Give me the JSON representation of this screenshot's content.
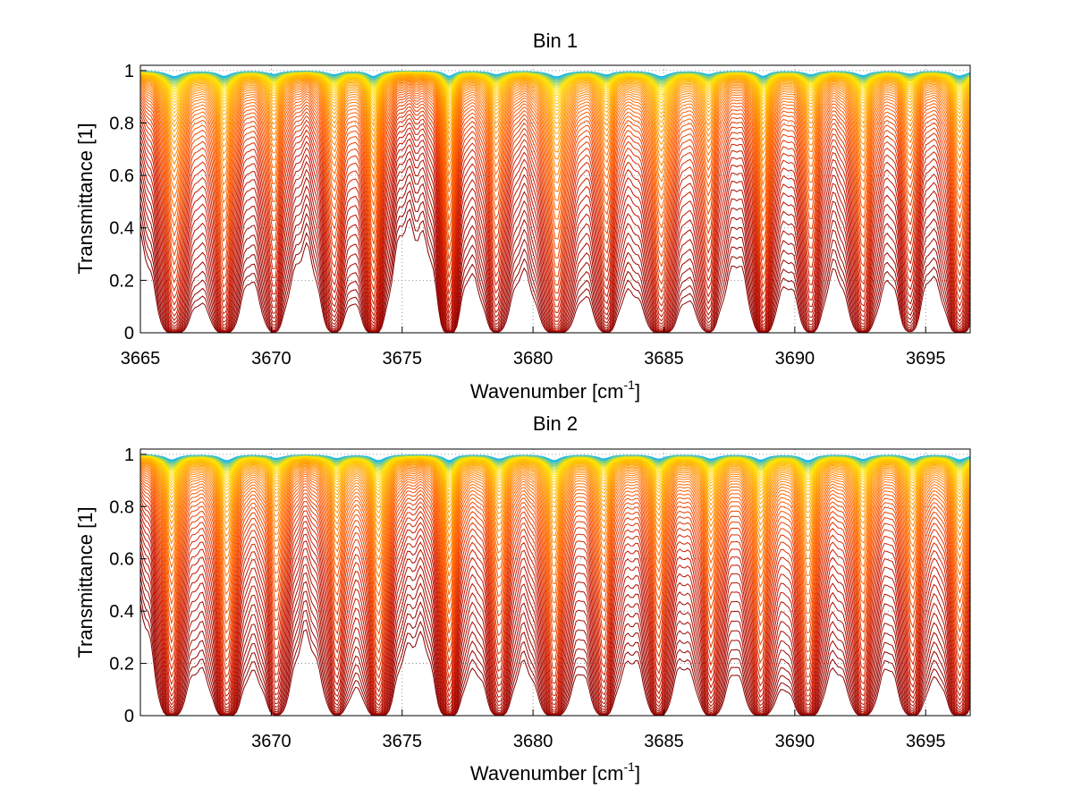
{
  "chart_data": [
    {
      "type": "line",
      "title": "Bin 1",
      "xlabel": "Wavenumber [cm",
      "xlabel_sup": "-1",
      "xlabel_end": "]",
      "ylabel": "Transmittance [1]",
      "xlim": [
        3665,
        3696.7
      ],
      "ylim": [
        0,
        1.02
      ],
      "xticks": [
        "3665",
        "3670",
        "3675",
        "3680",
        "3685",
        "3690",
        "3695"
      ],
      "xtick_values": [
        3665,
        3670,
        3675,
        3680,
        3685,
        3690,
        3695
      ],
      "yticks": [
        "0",
        "0.2",
        "0.4",
        "0.6",
        "0.8",
        "1"
      ],
      "ytick_values": [
        0,
        0.2,
        0.4,
        0.6,
        0.8,
        1
      ],
      "grid": true,
      "series_count": 60,
      "colormap": [
        "#8b0000",
        "#c81400",
        "#ff5a00",
        "#ffa000",
        "#ffe600",
        "#00b4ff"
      ],
      "absorption_lines": [
        {
          "x": 3666.3,
          "depth": 0.9,
          "width": 0.35
        },
        {
          "x": 3668.2,
          "depth": 0.85,
          "width": 0.3
        },
        {
          "x": 3670.1,
          "depth": 0.55,
          "width": 0.3
        },
        {
          "x": 3672.4,
          "depth": 0.6,
          "width": 0.3
        },
        {
          "x": 3673.9,
          "depth": 0.9,
          "width": 0.25
        },
        {
          "x": 3676.8,
          "depth": 0.85,
          "width": 0.22
        },
        {
          "x": 3678.6,
          "depth": 0.6,
          "width": 0.3
        },
        {
          "x": 3680.9,
          "depth": 0.95,
          "width": 0.35
        },
        {
          "x": 3682.8,
          "depth": 0.6,
          "width": 0.3
        },
        {
          "x": 3684.9,
          "depth": 0.9,
          "width": 0.35
        },
        {
          "x": 3686.7,
          "depth": 0.55,
          "width": 0.3
        },
        {
          "x": 3688.8,
          "depth": 0.85,
          "width": 0.25
        },
        {
          "x": 3690.6,
          "depth": 0.6,
          "width": 0.3
        },
        {
          "x": 3692.6,
          "depth": 0.75,
          "width": 0.3
        },
        {
          "x": 3694.4,
          "depth": 0.5,
          "width": 0.3
        },
        {
          "x": 3696.3,
          "depth": 0.85,
          "width": 0.3
        }
      ]
    },
    {
      "type": "line",
      "title": "Bin 2",
      "xlabel": "Wavenumber [cm",
      "xlabel_sup": "-1",
      "xlabel_end": "]",
      "ylabel": "Transmittance [1]",
      "xlim": [
        3665,
        3696.7
      ],
      "ylim": [
        0,
        1.02
      ],
      "xticks": [
        "3670",
        "3675",
        "3680",
        "3685",
        "3690",
        "3695"
      ],
      "xtick_values": [
        3670,
        3675,
        3680,
        3685,
        3690,
        3695
      ],
      "yticks": [
        "0",
        "0.2",
        "0.4",
        "0.6",
        "0.8",
        "1"
      ],
      "ytick_values": [
        0,
        0.2,
        0.4,
        0.6,
        0.8,
        1
      ],
      "grid": true,
      "series_count": 60,
      "colormap": [
        "#8b0000",
        "#c81400",
        "#ff5a00",
        "#ffa000",
        "#ffe600",
        "#00b4ff"
      ],
      "absorption_lines": [
        {
          "x": 3666.2,
          "depth": 0.85,
          "width": 0.3
        },
        {
          "x": 3668.3,
          "depth": 0.95,
          "width": 0.3
        },
        {
          "x": 3670.2,
          "depth": 0.6,
          "width": 0.3
        },
        {
          "x": 3672.5,
          "depth": 0.6,
          "width": 0.3
        },
        {
          "x": 3674.1,
          "depth": 0.95,
          "width": 0.3
        },
        {
          "x": 3676.8,
          "depth": 0.95,
          "width": 0.25
        },
        {
          "x": 3678.7,
          "depth": 0.7,
          "width": 0.3
        },
        {
          "x": 3680.8,
          "depth": 0.95,
          "width": 0.3
        },
        {
          "x": 3682.7,
          "depth": 0.65,
          "width": 0.3
        },
        {
          "x": 3684.8,
          "depth": 0.7,
          "width": 0.3
        },
        {
          "x": 3686.8,
          "depth": 0.7,
          "width": 0.3
        },
        {
          "x": 3688.7,
          "depth": 0.85,
          "width": 0.3
        },
        {
          "x": 3690.5,
          "depth": 0.95,
          "width": 0.3
        },
        {
          "x": 3692.6,
          "depth": 0.75,
          "width": 0.3
        },
        {
          "x": 3694.5,
          "depth": 0.7,
          "width": 0.3
        },
        {
          "x": 3696.3,
          "depth": 0.85,
          "width": 0.3
        }
      ]
    }
  ]
}
